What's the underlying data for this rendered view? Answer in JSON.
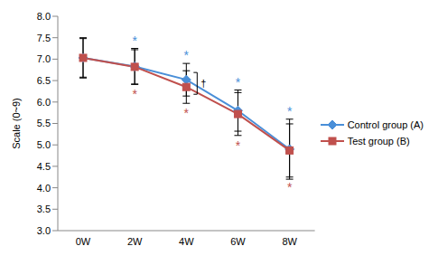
{
  "chart_data": {
    "type": "line",
    "categories": [
      "0W",
      "2W",
      "4W",
      "6W",
      "8W"
    ],
    "y_label": "Scale (0~9)",
    "ylim": [
      3,
      8
    ],
    "yticks": [
      {
        "value": 3,
        "label": "3.0"
      },
      3.5,
      {
        "value": 4,
        "label": "4.0"
      },
      4.5,
      {
        "value": 5,
        "label": "5.0"
      },
      5.5,
      {
        "value": 6,
        "label": "6.0"
      },
      6.5,
      {
        "value": 7,
        "label": "7.0"
      },
      7.5,
      {
        "value": 8,
        "label": "8.0"
      }
    ],
    "grid": false,
    "legend": "right",
    "series": [
      {
        "name": "Control group (A)",
        "color": "#4A8FD8",
        "marker": "diamond",
        "values": [
          7.03,
          6.83,
          6.52,
          5.8,
          4.9
        ],
        "errors": [
          0.47,
          0.42,
          0.38,
          0.48,
          0.7
        ],
        "annotations": [
          null,
          "*",
          "*",
          "*",
          "*"
        ]
      },
      {
        "name": "Test group (B)",
        "color": "#C0504D",
        "marker": "square",
        "values": [
          7.03,
          6.82,
          6.35,
          5.72,
          4.87
        ],
        "errors": [
          0.45,
          0.4,
          0.38,
          0.5,
          0.62
        ],
        "annotations": [
          null,
          "*",
          "*",
          "*",
          "*"
        ]
      }
    ],
    "annotations": [
      {
        "text": "†",
        "category": "4W"
      }
    ]
  }
}
